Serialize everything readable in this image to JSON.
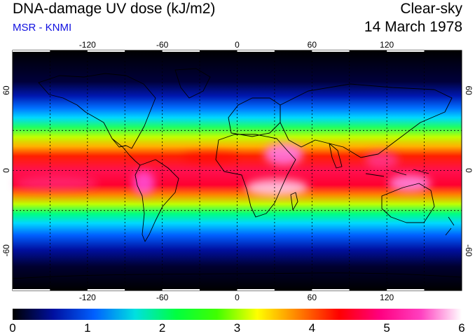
{
  "header": {
    "title": "DNA-damage UV dose (kJ/m2)",
    "source": "MSR - KNMI",
    "condition": "Clear-sky",
    "date": "14 March 1978"
  },
  "map": {
    "projection": "equirectangular",
    "lon_range": [
      -180,
      180
    ],
    "lat_range": [
      -90,
      90
    ],
    "gridline_lons": [
      -150,
      -120,
      -90,
      -60,
      -30,
      0,
      30,
      60,
      90,
      120,
      150
    ],
    "gridline_lats": [
      -30,
      0,
      30
    ],
    "lon_ticks": [
      "-120",
      "-60",
      "0",
      "60",
      "120"
    ],
    "lat_ticks": [
      "60",
      "0",
      "-60"
    ]
  },
  "colorbar": {
    "min": 0,
    "max": 6,
    "tick_labels": [
      "0",
      "1",
      "2",
      "3",
      "4",
      "5",
      "6"
    ],
    "colors": [
      "#000000",
      "#0010a0",
      "#0060ff",
      "#00e0e0",
      "#00ff40",
      "#40ff00",
      "#ffff00",
      "#ff8000",
      "#ff0000",
      "#ff0080",
      "#ff40c0",
      "#ffffff"
    ]
  }
}
